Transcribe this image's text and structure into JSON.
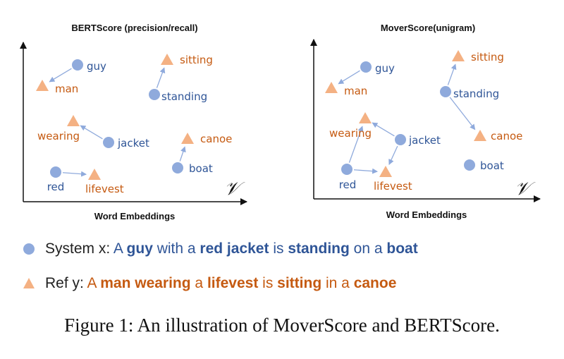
{
  "colors": {
    "system": "#2f5597",
    "reference": "#c55a11",
    "dot": "#8faadc",
    "triangle": "#f4b183",
    "arrow": "#8faadc",
    "axis": "#111111"
  },
  "space_symbol": "𝒱",
  "panels": [
    {
      "title": "BERTScore (precision/recall)",
      "xlabel": "Word Embeddings",
      "words": [
        {
          "id": "guy",
          "label": "guy",
          "kind": "system"
        },
        {
          "id": "man",
          "label": "man",
          "kind": "reference"
        },
        {
          "id": "sitting",
          "label": "sitting",
          "kind": "reference"
        },
        {
          "id": "standing",
          "label": "standing",
          "kind": "system"
        },
        {
          "id": "wearing",
          "label": "wearing",
          "kind": "reference"
        },
        {
          "id": "jacket",
          "label": "jacket",
          "kind": "system"
        },
        {
          "id": "canoe",
          "label": "canoe",
          "kind": "reference"
        },
        {
          "id": "boat",
          "label": "boat",
          "kind": "system"
        },
        {
          "id": "red",
          "label": "red",
          "kind": "system"
        },
        {
          "id": "lifevest",
          "label": "lifevest",
          "kind": "reference"
        }
      ],
      "links": [
        [
          "guy",
          "man"
        ],
        [
          "standing",
          "sitting"
        ],
        [
          "jacket",
          "wearing"
        ],
        [
          "boat",
          "canoe"
        ],
        [
          "red",
          "lifevest"
        ]
      ]
    },
    {
      "title": "MoverScore(unigram)",
      "xlabel": "Word Embeddings",
      "words": [
        {
          "id": "guy",
          "label": "guy",
          "kind": "system"
        },
        {
          "id": "man",
          "label": "man",
          "kind": "reference"
        },
        {
          "id": "sitting",
          "label": "sitting",
          "kind": "reference"
        },
        {
          "id": "standing",
          "label": "standing",
          "kind": "system"
        },
        {
          "id": "wearing",
          "label": "wearing",
          "kind": "reference"
        },
        {
          "id": "jacket",
          "label": "jacket",
          "kind": "system"
        },
        {
          "id": "canoe",
          "label": "canoe",
          "kind": "reference"
        },
        {
          "id": "boat",
          "label": "boat",
          "kind": "system"
        },
        {
          "id": "red",
          "label": "red",
          "kind": "system"
        },
        {
          "id": "lifevest",
          "label": "lifevest",
          "kind": "reference"
        }
      ],
      "links": [
        [
          "guy",
          "man"
        ],
        [
          "standing",
          "sitting"
        ],
        [
          "standing",
          "canoe"
        ],
        [
          "jacket",
          "wearing"
        ],
        [
          "jacket",
          "lifevest"
        ],
        [
          "red",
          "wearing"
        ],
        [
          "red",
          "lifevest"
        ]
      ]
    }
  ],
  "legend": {
    "system_prefix": "System x: ",
    "system_tokens": [
      {
        "t": "A ",
        "b": false
      },
      {
        "t": "guy",
        "b": true
      },
      {
        "t": " with a ",
        "b": false
      },
      {
        "t": "red jacket",
        "b": true
      },
      {
        "t": " is ",
        "b": false
      },
      {
        "t": "standing",
        "b": true
      },
      {
        "t": " on a ",
        "b": false
      },
      {
        "t": "boat",
        "b": true
      }
    ],
    "reference_prefix": "Ref y: ",
    "reference_tokens": [
      {
        "t": "A ",
        "b": false
      },
      {
        "t": "man wearing",
        "b": true
      },
      {
        "t": " a ",
        "b": false
      },
      {
        "t": "lifevest",
        "b": true
      },
      {
        "t": " is ",
        "b": false
      },
      {
        "t": "sitting",
        "b": true
      },
      {
        "t": " in a ",
        "b": false
      },
      {
        "t": "canoe",
        "b": true
      }
    ]
  },
  "caption": "Figure 1: An illustration of MoverScore and BERTScore."
}
